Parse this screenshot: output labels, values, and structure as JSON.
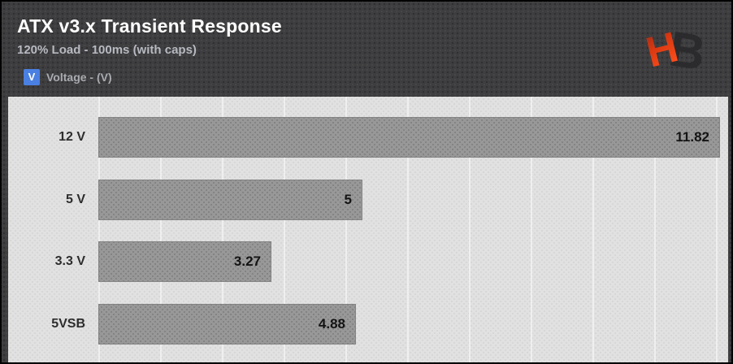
{
  "header": {
    "title": "ATX v3.x Transient Response",
    "subtitle": "120% Load - 100ms (with caps)",
    "legend": {
      "symbol": "V",
      "label": "Voltage - (V)"
    },
    "logo_name": "hardware-busters-logo"
  },
  "colors": {
    "accent_blue": "#4a80e2",
    "header_bg": "#3e3e40",
    "plot_bg": "#e1e1e1",
    "bar_gray": "#989898",
    "logo_red_top": "#8f2a1b",
    "logo_red_bottom": "#ff4f1c",
    "logo_dark": "#2b2b2d"
  },
  "chart_data": {
    "type": "bar",
    "orientation": "horizontal",
    "title": "ATX v3.x Transient Response",
    "subtitle": "120% Load - 100ms (with caps)",
    "series_name": "Voltage - (V)",
    "legend_position": "top-left",
    "categories": [
      "12 V",
      "5 V",
      "3.3 V",
      "5VSB"
    ],
    "values": [
      11.82,
      5,
      3.27,
      4.88
    ],
    "value_labels": [
      "11.82",
      "5",
      "3.27",
      "4.88"
    ],
    "xlabel": "",
    "ylabel": "",
    "xlim": [
      0,
      12
    ],
    "grid": true,
    "value_axis_labels_visible": false
  }
}
